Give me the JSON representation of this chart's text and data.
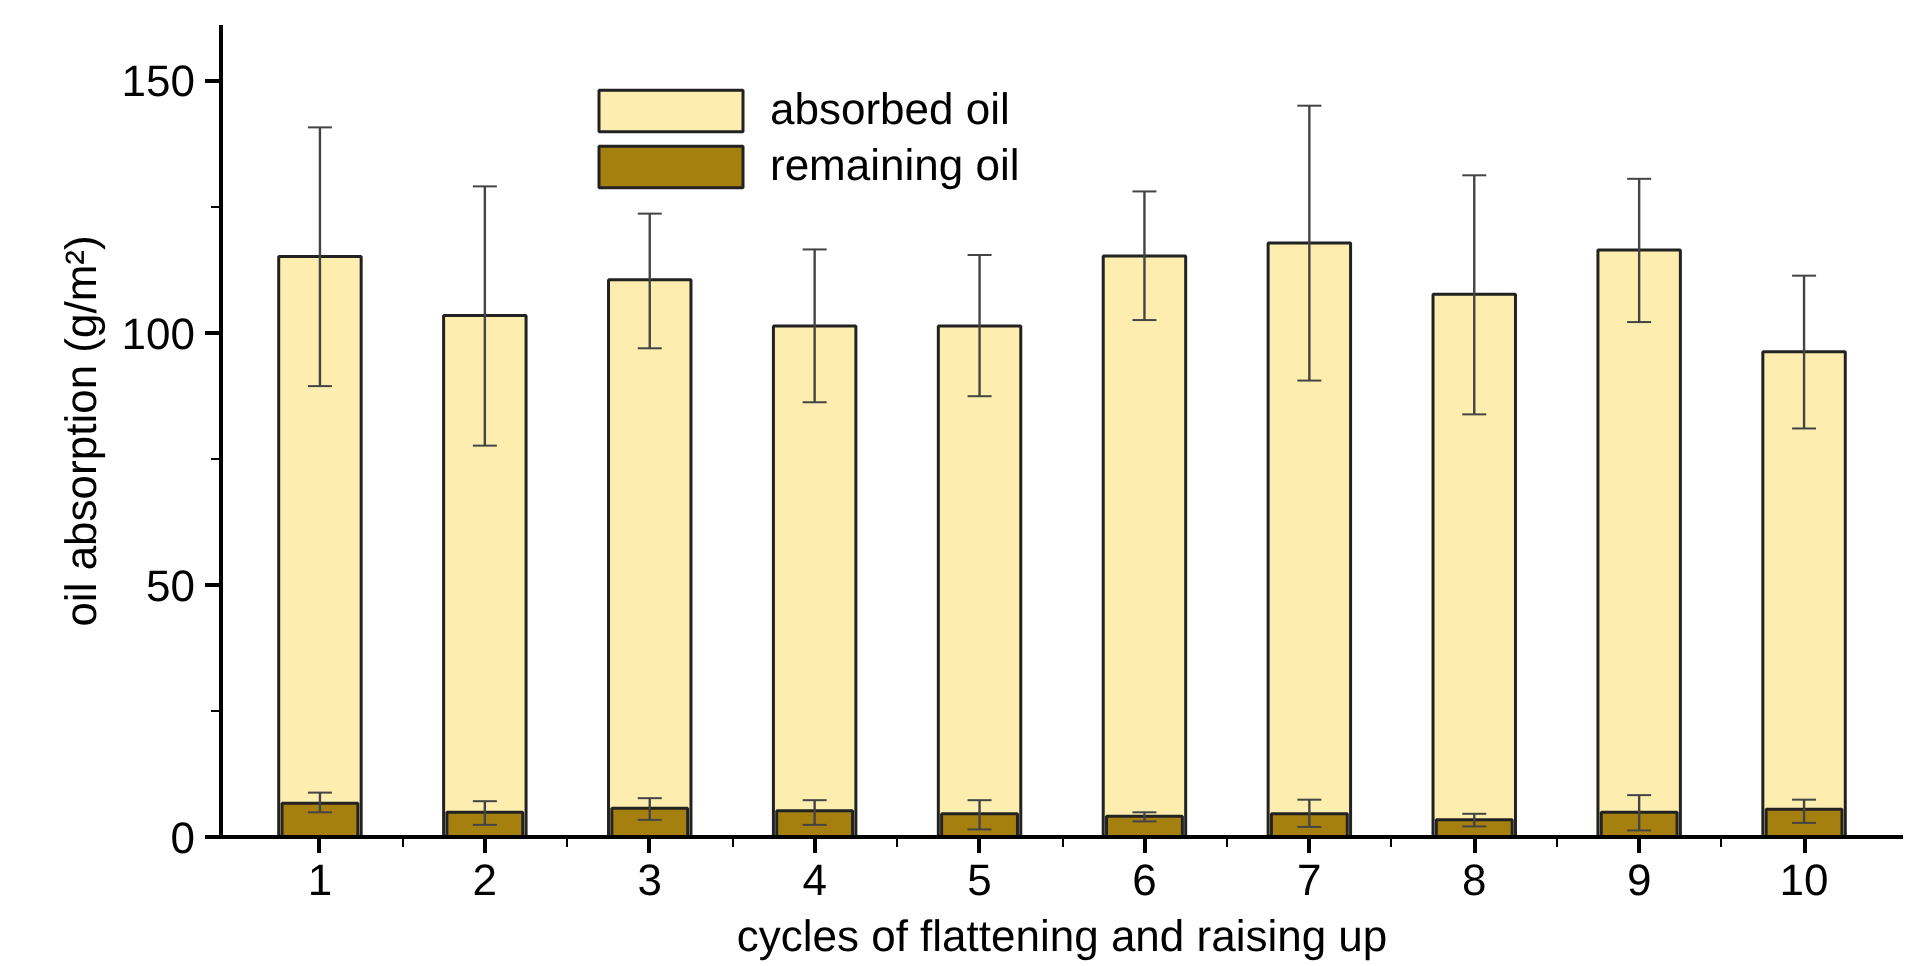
{
  "chart_data": {
    "type": "bar",
    "xlabel": "cycles of flattening and raising up",
    "ylabel": "oil absorption (g/m²)",
    "categories": [
      "1",
      "2",
      "3",
      "4",
      "5",
      "6",
      "7",
      "8",
      "9",
      "10"
    ],
    "ylim": [
      0,
      161
    ],
    "yticks": [
      0,
      {
        "value": 25,
        "label": null
      },
      50,
      {
        "value": 75,
        "label": null
      },
      100,
      {
        "value": 125,
        "label": null
      },
      150
    ],
    "series": [
      {
        "name": "absorbed oil",
        "color": "#fdeeb0",
        "values": [
          115.1,
          103.4,
          110.5,
          101.3,
          101.3,
          115.2,
          117.8,
          107.6,
          116.4,
          96.2
        ],
        "errors": [
          [
            89.4,
            140.7
          ],
          [
            77.6,
            129
          ],
          [
            96.9,
            123.6
          ],
          [
            86.2,
            116.5
          ],
          [
            87.4,
            115.4
          ],
          [
            102.5,
            128
          ],
          [
            90.5,
            145
          ],
          [
            83.8,
            131.2
          ],
          [
            102.1,
            130.5
          ],
          [
            81,
            111.3
          ]
        ]
      },
      {
        "name": "remaining oil",
        "color": "#a5800f",
        "values": [
          6.7,
          4.9,
          5.7,
          5.2,
          4.6,
          4.1,
          4.6,
          3.4,
          4.9,
          5.5
        ],
        "errors": [
          [
            4.9,
            8.8
          ],
          [
            2.4,
            7.1
          ],
          [
            3.4,
            7.7
          ],
          [
            2.4,
            7.3
          ],
          [
            1.5,
            7.3
          ],
          [
            3.1,
            4.9
          ],
          [
            2,
            7.4
          ],
          [
            2.1,
            4.6
          ],
          [
            1.3,
            8.3
          ],
          [
            2.8,
            7.4
          ]
        ]
      }
    ],
    "legend": "top",
    "grid": false
  }
}
